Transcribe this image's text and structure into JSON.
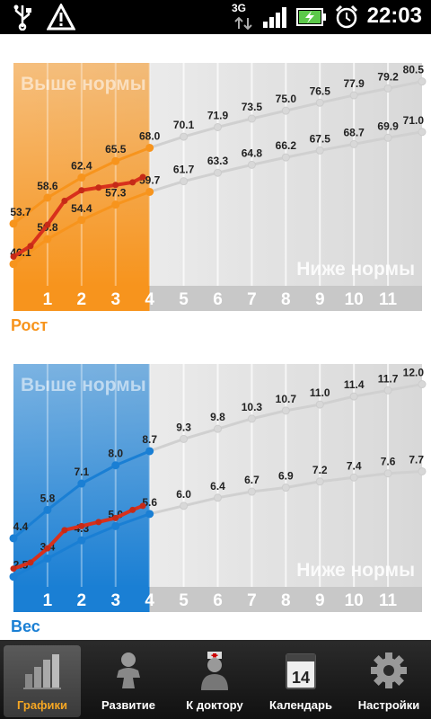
{
  "status_bar": {
    "time": "22:03",
    "network": "3G",
    "icons": [
      "usb-icon",
      "warning-icon",
      "signal-icon",
      "battery-icon",
      "alarm-icon"
    ]
  },
  "height_chart": {
    "above_label": "Выше нормы",
    "below_label": "Ниже нормы",
    "title": "Рост",
    "accent": "#f7941d",
    "x_ticks": [
      "1",
      "2",
      "3",
      "4",
      "5",
      "6",
      "7",
      "8",
      "9",
      "10",
      "11"
    ]
  },
  "weight_chart": {
    "above_label": "Выше нормы",
    "below_label": "Ниже нормы",
    "title": "Вес",
    "accent": "#1a7fd4",
    "x_ticks": [
      "1",
      "2",
      "3",
      "4",
      "5",
      "6",
      "7",
      "8",
      "9",
      "10",
      "11"
    ]
  },
  "chart_data": [
    {
      "type": "line",
      "title": "Рост",
      "x": [
        0,
        1,
        2,
        3,
        4,
        5,
        6,
        7,
        8,
        9,
        10,
        11,
        12
      ],
      "xlim": [
        0,
        12
      ],
      "ylim": [
        42,
        84
      ],
      "series": [
        {
          "role": "upper-norm",
          "values": [
            53.7,
            58.6,
            62.4,
            65.5,
            68.0,
            70.1,
            71.9,
            73.5,
            75.0,
            76.5,
            77.9,
            79.2,
            80.5
          ]
        },
        {
          "role": "lower-norm",
          "values": [
            46.1,
            50.8,
            54.4,
            57.3,
            59.7,
            61.7,
            63.3,
            64.8,
            66.2,
            67.5,
            68.7,
            69.9,
            71.0
          ]
        },
        {
          "role": "child",
          "x": [
            0,
            0.5,
            1,
            1.5,
            2,
            2.5,
            3,
            3.5,
            3.8
          ],
          "values": [
            47.5,
            49.5,
            53.5,
            58.0,
            60.0,
            60.5,
            61.0,
            61.5,
            62.5
          ]
        }
      ]
    },
    {
      "type": "line",
      "title": "Вес",
      "x": [
        0,
        1,
        2,
        3,
        4,
        5,
        6,
        7,
        8,
        9,
        10,
        11,
        12
      ],
      "xlim": [
        0,
        12
      ],
      "ylim": [
        2.0,
        13.0
      ],
      "series": [
        {
          "role": "upper-norm",
          "values": [
            4.4,
            5.8,
            7.1,
            8.0,
            8.7,
            9.3,
            9.8,
            10.3,
            10.7,
            11.0,
            11.4,
            11.7,
            12.0
          ]
        },
        {
          "role": "lower-norm",
          "values": [
            2.5,
            3.4,
            4.3,
            5.0,
            5.6,
            6.0,
            6.4,
            6.7,
            6.9,
            7.2,
            7.4,
            7.6,
            7.7
          ]
        },
        {
          "role": "child",
          "x": [
            0,
            0.5,
            1,
            1.5,
            2,
            2.5,
            3,
            3.5,
            3.8
          ],
          "values": [
            2.9,
            3.2,
            3.9,
            4.8,
            5.0,
            5.2,
            5.4,
            5.8,
            6.0
          ]
        }
      ]
    }
  ],
  "tabs": [
    {
      "label": "Графики",
      "icon": "bar-chart-icon",
      "active": true
    },
    {
      "label": "Развитие",
      "icon": "baby-icon",
      "active": false
    },
    {
      "label": "К доктору",
      "icon": "doctor-icon",
      "active": false
    },
    {
      "label": "Календарь",
      "icon": "calendar-icon",
      "active": false,
      "icon_text": "14"
    },
    {
      "label": "Настройки",
      "icon": "gear-icon",
      "active": false
    }
  ]
}
